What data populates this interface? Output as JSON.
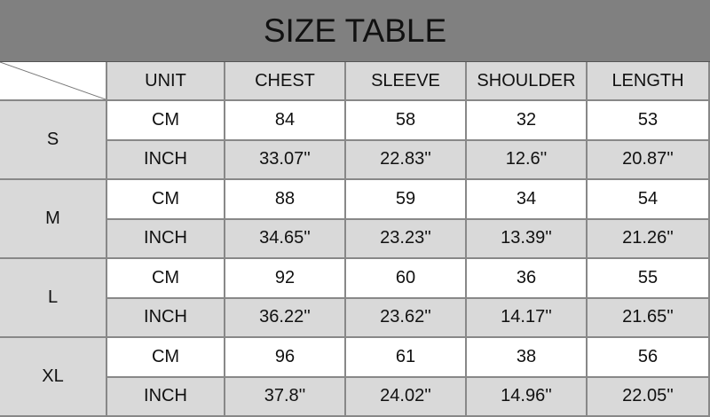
{
  "title": "SIZE TABLE",
  "headers": [
    "UNIT",
    "CHEST",
    "SLEEVE",
    "SHOULDER",
    "LENGTH"
  ],
  "rows": [
    {
      "size": "S",
      "cm": [
        "CM",
        "84",
        "58",
        "32",
        "53"
      ],
      "inch": [
        "INCH",
        "33.07''",
        "22.83''",
        "12.6''",
        "20.87''"
      ]
    },
    {
      "size": "M",
      "cm": [
        "CM",
        "88",
        "59",
        "34",
        "54"
      ],
      "inch": [
        "INCH",
        "34.65''",
        "23.23''",
        "13.39''",
        "21.26''"
      ]
    },
    {
      "size": "L",
      "cm": [
        "CM",
        "92",
        "60",
        "36",
        "55"
      ],
      "inch": [
        "INCH",
        "36.22''",
        "23.62''",
        "14.17''",
        "21.65''"
      ]
    },
    {
      "size": "XL",
      "cm": [
        "CM",
        "96",
        "61",
        "38",
        "56"
      ],
      "inch": [
        "INCH",
        "37.8''",
        "24.02''",
        "14.96''",
        "22.05''"
      ]
    }
  ],
  "colors": {
    "title_bg": "#808080",
    "cell_gray": "#d9d9d9",
    "border": "#888888"
  }
}
